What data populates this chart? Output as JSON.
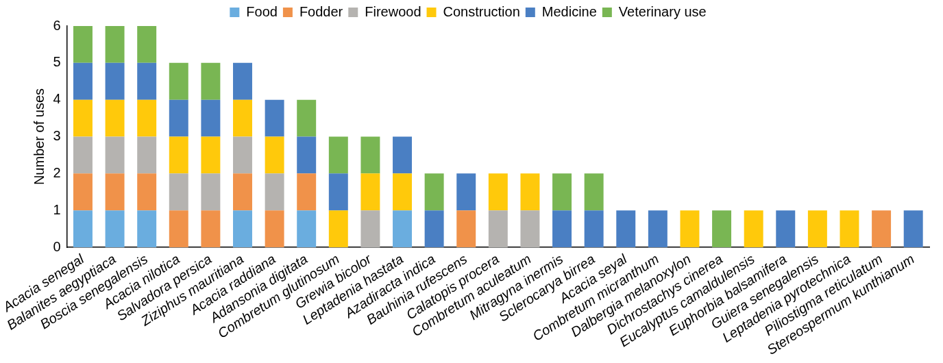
{
  "chart_data": {
    "type": "bar",
    "stacked": true,
    "ylabel": "Number of uses",
    "ylim": [
      0,
      6
    ],
    "yticks": [
      0,
      1,
      2,
      3,
      4,
      5,
      6
    ],
    "grid": false,
    "legend": "top",
    "categories": [
      "Acacia senegal",
      "Balanites aegyptiaca",
      "Boscia senegalensis",
      "Acacia nilotica",
      "Salvadora persica",
      "Ziziphus mauritiana",
      "Acacia raddiana",
      "Adansonia digitata",
      "Combretum glutinosum",
      "Grewia bicolor",
      "Leptadenia hastata",
      "Azadiracta indica",
      "Bauhinia rufescens",
      "Calatopis procera",
      "Combretum aculeatum",
      "Mitragyna inermis",
      "Sclerocarya birrea",
      "Acacia seyal",
      "Combretum micranthum",
      "Dalbergia melanoxylon",
      "Dichrostachys cinerea",
      "Eucalyptus camaldulensis",
      "Euphorbia balsamifera",
      "Guiera senegalensis",
      "Leptadenia pyrotechnica",
      "Piliostigma reticulatum",
      "Stereospermum kunthianum"
    ],
    "series": [
      {
        "name": "Food",
        "color": "#6aaddf",
        "values": [
          1,
          1,
          1,
          null,
          null,
          1,
          null,
          1,
          null,
          null,
          1,
          null,
          null,
          null,
          null,
          null,
          null,
          null,
          null,
          null,
          null,
          null,
          null,
          null,
          null,
          null,
          null
        ]
      },
      {
        "name": "Fodder",
        "color": "#f0924a",
        "values": [
          1,
          1,
          1,
          1,
          1,
          1,
          1,
          1,
          null,
          null,
          null,
          null,
          1,
          null,
          null,
          null,
          null,
          null,
          null,
          null,
          null,
          null,
          null,
          null,
          null,
          1,
          null
        ]
      },
      {
        "name": "Firewood",
        "color": "#b5b3b0",
        "values": [
          1,
          1,
          1,
          1,
          1,
          1,
          1,
          null,
          null,
          1,
          null,
          null,
          null,
          1,
          1,
          null,
          null,
          null,
          null,
          null,
          null,
          null,
          null,
          null,
          null,
          null,
          null
        ]
      },
      {
        "name": "Construction",
        "color": "#ffc90b",
        "values": [
          1,
          1,
          1,
          1,
          1,
          1,
          1,
          null,
          1,
          1,
          1,
          null,
          null,
          1,
          1,
          null,
          null,
          null,
          null,
          1,
          null,
          1,
          null,
          1,
          1,
          null,
          null
        ]
      },
      {
        "name": "Medicine",
        "color": "#4a7fc3",
        "values": [
          1,
          1,
          1,
          1,
          1,
          1,
          1,
          1,
          1,
          null,
          1,
          1,
          1,
          null,
          null,
          1,
          1,
          1,
          1,
          null,
          null,
          null,
          1,
          null,
          null,
          null,
          1
        ]
      },
      {
        "name": "Veterinary use",
        "color": "#79b653",
        "values": [
          1,
          1,
          1,
          1,
          1,
          null,
          null,
          1,
          1,
          1,
          null,
          1,
          null,
          null,
          null,
          1,
          1,
          null,
          null,
          null,
          1,
          null,
          null,
          null,
          null,
          null,
          null
        ]
      }
    ]
  }
}
